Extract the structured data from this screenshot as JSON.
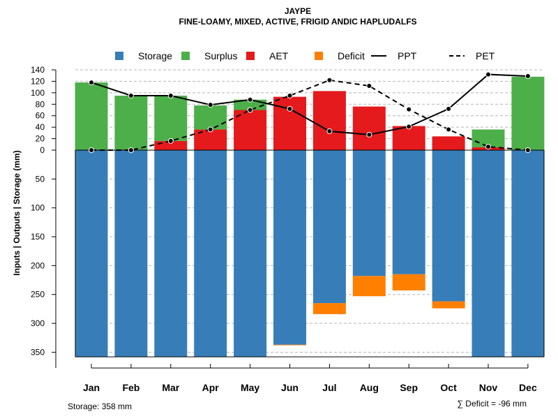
{
  "chart_data": {
    "type": "bar",
    "title": "JAYPE",
    "subtitle": "FINE-LOAMY, MIXED, ACTIVE, FRIGID ANDIC HAPLUDALFS",
    "ylabel": "Inputs | Outputs | Storage    (mm)",
    "categories": [
      "Jan",
      "Feb",
      "Mar",
      "Apr",
      "May",
      "Jun",
      "Jul",
      "Aug",
      "Sep",
      "Oct",
      "Nov",
      "Dec"
    ],
    "upper_ticks": [
      "140",
      "120",
      "100",
      "80",
      "60",
      "40",
      "20",
      "0"
    ],
    "lower_ticks": [
      "50",
      "100",
      "150",
      "200",
      "250",
      "300",
      "350"
    ],
    "upper_ylim": [
      0,
      140
    ],
    "lower_ylim": [
      0,
      358
    ],
    "legend": [
      {
        "label": "Storage",
        "kind": "square",
        "color": "#377eb8"
      },
      {
        "label": "Surplus",
        "kind": "square",
        "color": "#4daf4a"
      },
      {
        "label": "AET",
        "kind": "square",
        "color": "#e41a1c"
      },
      {
        "label": "Deficit",
        "kind": "square",
        "color": "#ff7f00"
      },
      {
        "label": "PPT",
        "kind": "solid-line",
        "color": "#000000"
      },
      {
        "label": "PET",
        "kind": "dashed-line",
        "color": "#000000"
      }
    ],
    "colors": {
      "storage": "#377eb8",
      "surplus": "#4daf4a",
      "aet": "#e41a1c",
      "deficit": "#ff7f00",
      "grid": "#b3b3b3"
    },
    "series": {
      "AET": [
        0,
        0,
        16,
        36,
        70,
        93,
        103,
        76,
        42,
        24,
        5,
        0
      ],
      "Surplus": [
        118,
        95,
        79,
        42,
        18,
        0,
        0,
        0,
        0,
        0,
        31,
        128
      ],
      "Storage": [
        358,
        358,
        358,
        358,
        358,
        337,
        265,
        218,
        215,
        262,
        358,
        358
      ],
      "Deficit": [
        0,
        0,
        0,
        0,
        0,
        1,
        19,
        35,
        28,
        12,
        0,
        0
      ],
      "PPT": [
        118,
        95,
        95,
        79,
        88,
        72,
        33,
        27,
        41,
        72,
        132,
        129
      ],
      "PET": [
        0,
        0,
        16,
        36,
        70,
        95,
        122,
        112,
        71,
        36,
        6,
        0
      ]
    },
    "annotations": {
      "storage_text": "Storage: 358 mm",
      "deficit_text": "∑ Deficit = -96 mm"
    }
  }
}
